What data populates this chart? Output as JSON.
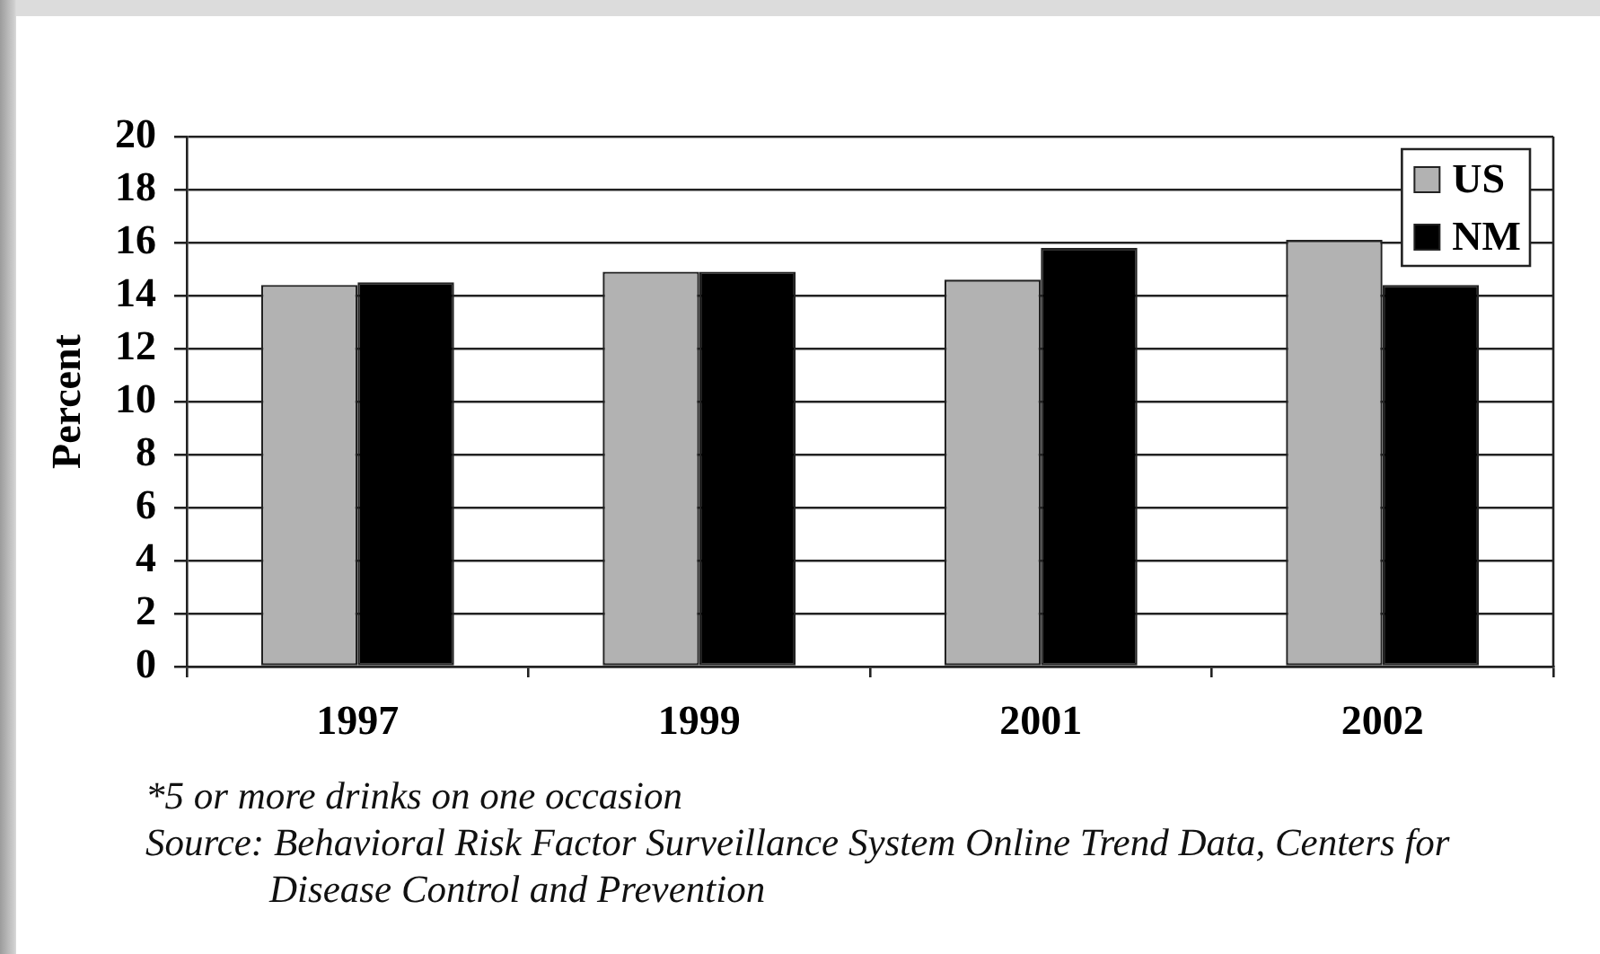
{
  "chart_data": {
    "type": "bar",
    "ylabel": "Percent",
    "categories": [
      "1997",
      "1999",
      "2001",
      "2002"
    ],
    "series": [
      {
        "name": "US",
        "color": "#b2b2b2",
        "values": [
          14.4,
          14.9,
          14.6,
          16.1
        ]
      },
      {
        "name": "NM",
        "color": "#000000",
        "values": [
          14.5,
          14.9,
          15.8,
          14.4
        ]
      }
    ],
    "ylim": [
      0,
      20
    ],
    "yticks": [
      0,
      2,
      4,
      6,
      8,
      10,
      12,
      14,
      16,
      18,
      20
    ],
    "grid": "y",
    "legend": "top right",
    "annotations": [
      "*5 or more drinks on one occasion",
      "Source: Behavioral Risk Factor Surveillance System Online Trend Data, Centers for Disease Control and Prevention"
    ]
  }
}
